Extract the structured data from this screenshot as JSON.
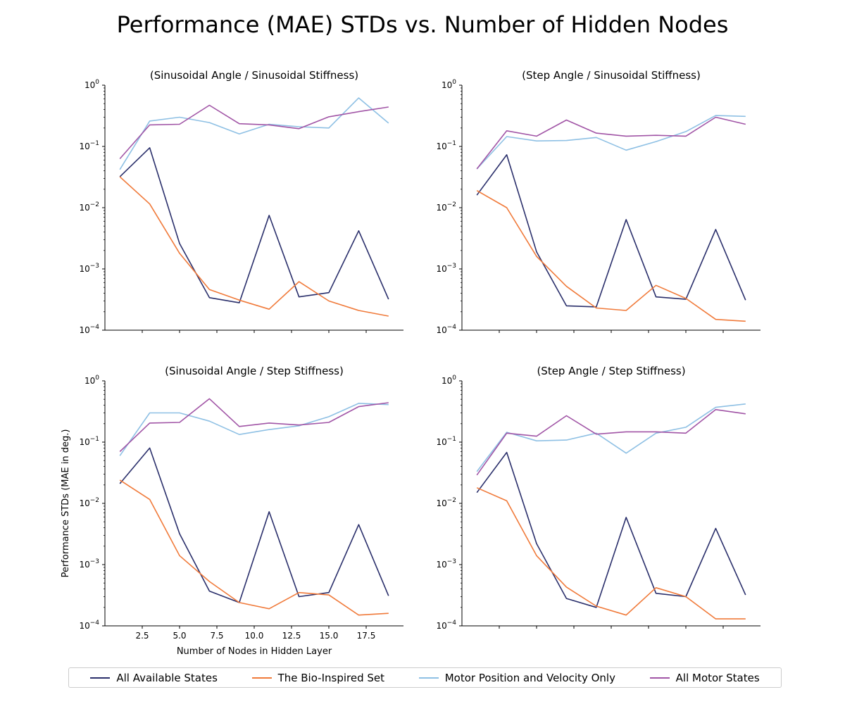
{
  "title": "Performance (MAE) STDs vs. Number of Hidden Nodes",
  "chart_data": {
    "type": "line",
    "y_scale": "log",
    "ylim": [
      0.0001,
      1
    ],
    "xlim": [
      0,
      20
    ],
    "x": [
      1,
      3,
      5,
      7,
      9,
      11,
      13,
      15,
      17,
      19
    ],
    "x_ticks": [
      "2.5",
      "5.0",
      "7.5",
      "10.0",
      "12.5",
      "15.0",
      "17.5"
    ],
    "y_ticks": [
      {
        "base": "10",
        "exp": "0"
      },
      {
        "base": "10",
        "exp": "−1"
      },
      {
        "base": "10",
        "exp": "−2"
      },
      {
        "base": "10",
        "exp": "−3"
      },
      {
        "base": "10",
        "exp": "−4"
      }
    ],
    "xlabel": "Number of Nodes in Hidden Layer",
    "ylabel": "Performance STDs (MAE in deg.)",
    "grid": false,
    "legend_position": "bottom-center",
    "series_meta": [
      {
        "name": "All Available States",
        "color": "#2a2f6b"
      },
      {
        "name": "The Bio-Inspired Set",
        "color": "#f07a3a"
      },
      {
        "name": "Motor Position and Velocity Only",
        "color": "#8ec0e4"
      },
      {
        "name": "All Motor States",
        "color": "#a155a6"
      }
    ],
    "panels": [
      {
        "title": "(Sinusoidal Angle / Sinusoidal Stiffness)",
        "series": [
          {
            "name": "All Available States",
            "values": [
              0.032,
              0.095,
              0.0026,
              0.00034,
              0.00028,
              0.0075,
              0.00035,
              0.00041,
              0.0042,
              0.00032
            ]
          },
          {
            "name": "The Bio-Inspired Set",
            "values": [
              0.032,
              0.0115,
              0.0018,
              0.00046,
              0.00031,
              0.00022,
              0.00062,
              0.0003,
              0.00021,
              0.00017
            ]
          },
          {
            "name": "Motor Position and Velocity Only",
            "values": [
              0.042,
              0.26,
              0.3,
              0.245,
              0.16,
              0.23,
              0.21,
              0.2,
              0.62,
              0.24
            ]
          },
          {
            "name": "All Motor States",
            "values": [
              0.063,
              0.225,
              0.23,
              0.47,
              0.235,
              0.225,
              0.195,
              0.305,
              0.37,
              0.44
            ]
          }
        ]
      },
      {
        "title": "(Step Angle / Sinusoidal Stiffness)",
        "series": [
          {
            "name": "All Available States",
            "values": [
              0.016,
              0.073,
              0.0019,
              0.00025,
              0.00024,
              0.0064,
              0.00035,
              0.00032,
              0.0044,
              0.00031
            ]
          },
          {
            "name": "The Bio-Inspired Set",
            "values": [
              0.019,
              0.01,
              0.0016,
              0.00052,
              0.00023,
              0.00021,
              0.00054,
              0.00033,
              0.00015,
              0.00014
            ]
          },
          {
            "name": "Motor Position and Velocity Only",
            "values": [
              0.043,
              0.145,
              0.123,
              0.125,
              0.14,
              0.087,
              0.12,
              0.175,
              0.32,
              0.31
            ]
          },
          {
            "name": "All Motor States",
            "values": [
              0.043,
              0.18,
              0.147,
              0.27,
              0.165,
              0.147,
              0.152,
              0.147,
              0.3,
              0.23
            ]
          }
        ]
      },
      {
        "title": "(Sinusoidal Angle / Step Stiffness)",
        "series": [
          {
            "name": "All Available States",
            "values": [
              0.021,
              0.08,
              0.0032,
              0.00037,
              0.00024,
              0.0073,
              0.0003,
              0.00035,
              0.0045,
              0.00031
            ]
          },
          {
            "name": "The Bio-Inspired Set",
            "values": [
              0.024,
              0.0116,
              0.0014,
              0.00053,
              0.00024,
              0.00019,
              0.00035,
              0.00032,
              0.00015,
              0.00016
            ]
          },
          {
            "name": "Motor Position and Velocity Only",
            "values": [
              0.06,
              0.3,
              0.3,
              0.22,
              0.133,
              0.16,
              0.185,
              0.26,
              0.43,
              0.41
            ]
          },
          {
            "name": "All Motor States",
            "values": [
              0.07,
              0.205,
              0.21,
              0.51,
              0.18,
              0.205,
              0.19,
              0.21,
              0.38,
              0.44
            ]
          }
        ]
      },
      {
        "title": "(Step Angle / Step Stiffness)",
        "series": [
          {
            "name": "All Available States",
            "values": [
              0.015,
              0.068,
              0.0022,
              0.00028,
              0.0002,
              0.0059,
              0.00034,
              0.0003,
              0.0039,
              0.00032
            ]
          },
          {
            "name": "The Bio-Inspired Set",
            "values": [
              0.018,
              0.011,
              0.0014,
              0.00043,
              0.00021,
              0.00015,
              0.00042,
              0.0003,
              0.00013,
              0.00013
            ]
          },
          {
            "name": "Motor Position and Velocity Only",
            "values": [
              0.033,
              0.145,
              0.105,
              0.108,
              0.14,
              0.066,
              0.14,
              0.175,
              0.37,
              0.42
            ]
          },
          {
            "name": "All Motor States",
            "values": [
              0.029,
              0.14,
              0.125,
              0.27,
              0.135,
              0.147,
              0.147,
              0.14,
              0.34,
              0.29
            ]
          }
        ]
      }
    ]
  }
}
